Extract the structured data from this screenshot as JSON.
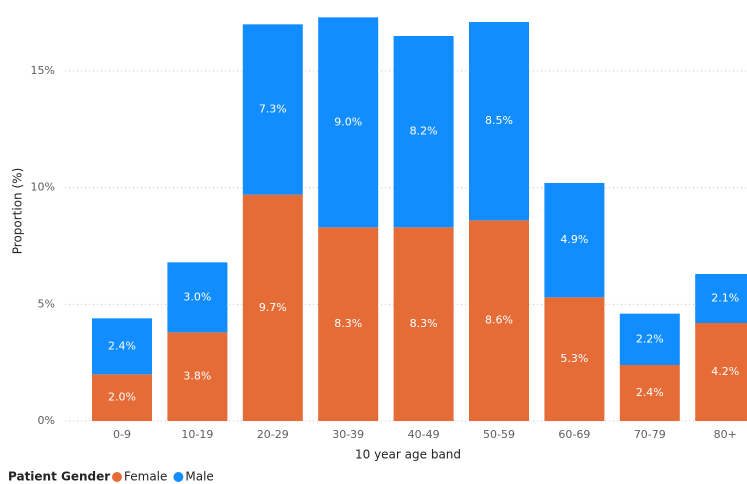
{
  "chart_data": {
    "type": "stacked_bar",
    "x_label": "10 year age band",
    "y_label": "Proportion (%)",
    "legend_title": "Patient Gender",
    "categories": [
      "0-9",
      "10-19",
      "20-29",
      "30-39",
      "40-49",
      "50-59",
      "60-69",
      "70-79",
      "80+"
    ],
    "series": [
      {
        "name": "Female",
        "color": "#e66c37",
        "values": [
          2.0,
          3.8,
          9.7,
          8.3,
          8.3,
          8.6,
          5.3,
          2.4,
          4.2
        ],
        "value_labels": [
          "2.0%",
          "3.8%",
          "9.7%",
          "8.3%",
          "8.3%",
          "8.6%",
          "5.3%",
          "2.4%",
          "4.2%"
        ]
      },
      {
        "name": "Male",
        "color": "#118dff",
        "values": [
          2.4,
          3.0,
          7.3,
          9.0,
          8.2,
          8.5,
          4.9,
          2.2,
          2.1
        ],
        "value_labels": [
          "2.4%",
          "3.0%",
          "7.3%",
          "9.0%",
          "8.2%",
          "8.5%",
          "4.9%",
          "2.2%",
          "2.1%"
        ]
      }
    ],
    "ylim": [
      0,
      18
    ],
    "yticks": [
      {
        "value": 0,
        "label": "0%"
      },
      {
        "value": 5,
        "label": "5%"
      },
      {
        "value": 10,
        "label": "10%"
      },
      {
        "value": 15,
        "label": "15%"
      }
    ],
    "grid": true,
    "legend": "bottom-left"
  }
}
